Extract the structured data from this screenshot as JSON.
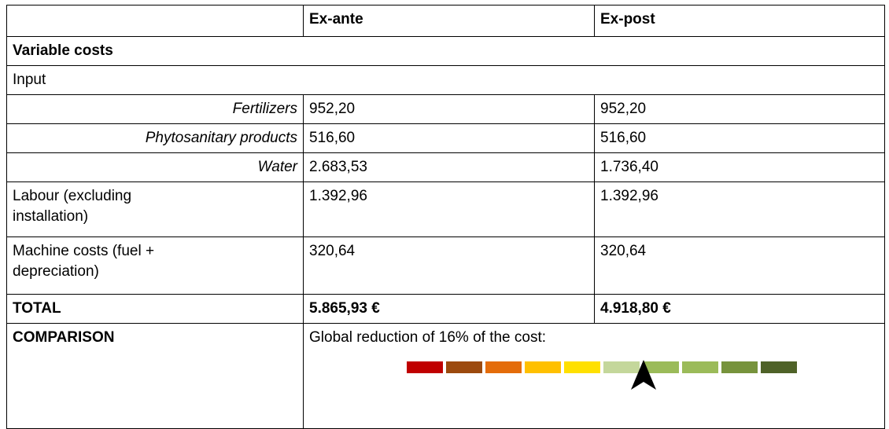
{
  "table": {
    "columns": [
      "Ex-ante",
      "Ex-post"
    ],
    "section": "Variable costs",
    "group": "Input",
    "rows": [
      [
        "Fertilizers",
        "952,20",
        "952,20"
      ],
      [
        "Phytosanitary products",
        "516,60",
        "516,60"
      ],
      [
        "Water",
        "2.683,53",
        "1.736,40"
      ],
      [
        "Labour (excluding installation)",
        "1.392,96",
        "1.392,96"
      ],
      [
        "Machine costs (fuel + depreciation)",
        "320,64",
        "320,64"
      ]
    ],
    "total": [
      "TOTAL",
      "5.865,93 €",
      "4.918,80 €"
    ],
    "comparison": {
      "label": "COMPARISON",
      "text": "Global reduction of 16% of the cost:"
    }
  }
}
